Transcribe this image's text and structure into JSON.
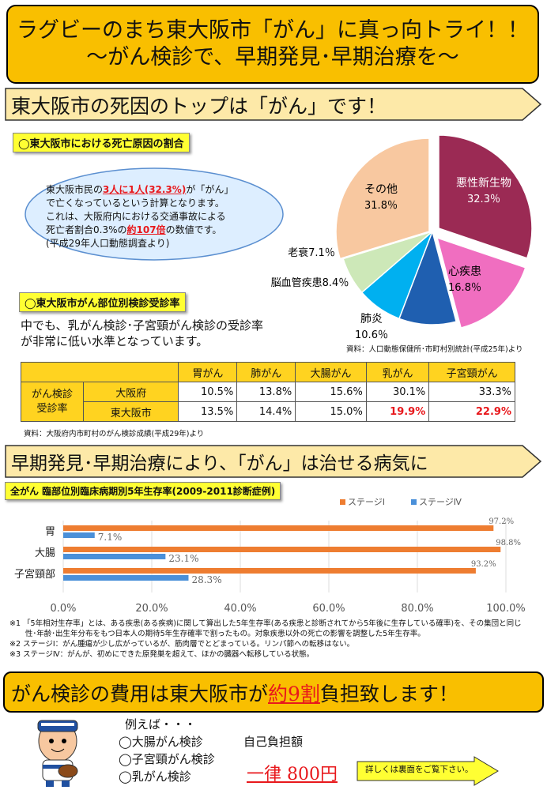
{
  "title": {
    "line1": "ラグビーのまち東大阪市「がん」に真っ向トライ！！",
    "line2": "～がん検診で、早期発見･早期治療を～"
  },
  "section1": {
    "heading": "東大阪市の死因のトップは「がん」です！",
    "tag": "◯東大阪市における死亡原因の割合",
    "callout": {
      "line1_pre": "東大阪市民の",
      "line1_em": "3人に1人(32.3%)",
      "line1_post": "が「がん」",
      "line2": "で亡くなっているという計算となります。",
      "line3": "これは、大阪府内における交通事故による",
      "line4_pre": "死亡者割合0.3%の",
      "line4_em": "約107倍",
      "line4_post": "の数値です。",
      "line5": "(平成29年人口動態調査より)"
    },
    "pie_source": "資料：人口動態保健所･市町村別統計(平成25年)より"
  },
  "chart_data": [
    {
      "type": "pie",
      "slices": [
        {
          "label": "悪性新生物",
          "value": 32.3,
          "value_text": "32.3％",
          "color": "#9b2a54"
        },
        {
          "label": "心疾患",
          "value": 16.8,
          "value_text": "16.8％",
          "color": "#f06ec0"
        },
        {
          "label": "肺炎",
          "value": 10.6,
          "value_text": "10.6％",
          "color": "#1f5fb0"
        },
        {
          "label": "脳血管疾患",
          "value": 8.4,
          "value_text": "8.4％",
          "color": "#00b0f0"
        },
        {
          "label": "老衰",
          "value": 7.1,
          "value_text": "7.1％",
          "color": "#cde8b8"
        },
        {
          "label": "その他",
          "value": 31.8,
          "value_text": "31.8％",
          "color": "#f8c8a0"
        }
      ]
    },
    {
      "type": "bar",
      "orientation": "horizontal",
      "title": "全がん 臨部位別臨床病期別5年生存率(2009-2011診断症例)",
      "categories": [
        "胃",
        "大腸",
        "子宮頸部"
      ],
      "series": [
        {
          "name": "ステージⅠ",
          "color": "#ee7d31",
          "values": [
            97.2,
            98.8,
            93.2
          ],
          "labels": [
            "97.2%",
            "98.8%",
            "93.2%"
          ]
        },
        {
          "name": "ステージⅣ",
          "color": "#4a90d9",
          "values": [
            7.1,
            23.1,
            28.3
          ],
          "labels": [
            "7.1%",
            "23.1%",
            "28.3%"
          ]
        }
      ],
      "xlim": [
        0,
        100
      ],
      "xticks": [
        "0.0%",
        "20.0%",
        "40.0%",
        "60.0%",
        "80.0%",
        "100.0%"
      ],
      "legend_position": "top-right"
    }
  ],
  "section_rates": {
    "tag": "◯東大阪市がん部位別検診受診率",
    "lead1": "中でも、乳がん検診･子宮頸がん検診の受診率",
    "lead2": "が非常に低い水準となっています。",
    "table": {
      "columns": [
        "胃がん",
        "肺がん",
        "大腸がん",
        "乳がん",
        "子宮頸がん"
      ],
      "row_group": "がん検診受診率",
      "row_group_l1": "がん検診",
      "row_group_l2": "受診率",
      "rows": [
        {
          "name": "大阪府",
          "values": [
            "10.5%",
            "13.8%",
            "15.6%",
            "30.1%",
            "33.3%"
          ]
        },
        {
          "name": "東大阪市",
          "values": [
            "13.5%",
            "14.4%",
            "15.0%",
            "19.9%",
            "22.9%"
          ]
        }
      ]
    },
    "source": "資料：大阪府内市町村のがん検診成績(平成29年)より"
  },
  "section2": {
    "heading": "早期発見･早期治療により、「がん」は治せる病気に",
    "tag": "全がん 臨部位別臨床病期別5年生存率(2009-2011診断症例)",
    "notes": [
      "※1 「5年相対生存率」とは、ある疾患(ある疾病)に関して算出した5年生存率(ある疾患と診断されてから5年後に生存している確率)を、その集団と同じ",
      "性･年齢･出生年分布をもつ日本人の期待5年生存確率で割ったもの。対象疾患以外の死亡の影響を調整した5年生存率。",
      "※2 ステージⅠ：がん腫瘍が少し広がっているが、筋肉層でとどまっている。リンパ節への転移はない。",
      "※3 ステージⅣ：がんが、初めにできた原発巣を超えて、ほかの臓器へ転移している状態。"
    ]
  },
  "section3": {
    "heading_pre": "がん検診の費用は東大阪市が",
    "heading_em": "約9割",
    "heading_post": "負担致します！",
    "example": "例えば・・・",
    "items": [
      "◯大腸がん検診",
      "◯子宮頸がん検診",
      "◯乳がん検診"
    ],
    "copay_label": "自己負担額",
    "price": "一律 800円",
    "more": "詳しくは裏面をご覧下さい。"
  }
}
